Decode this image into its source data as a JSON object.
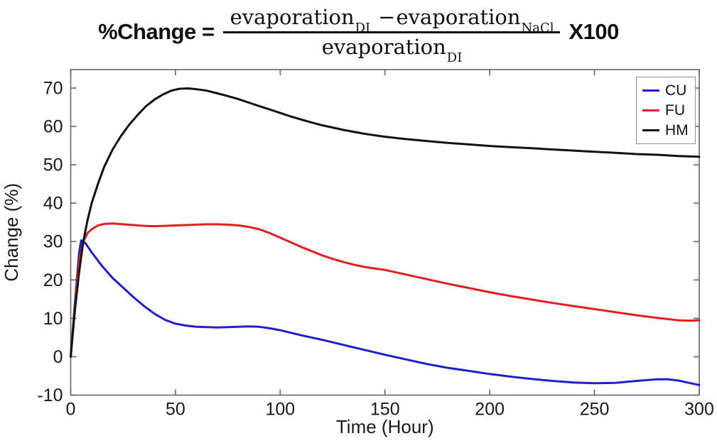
{
  "formula": {
    "lhs": "%Change =",
    "numerator_term1": "evaporation",
    "numerator_term1_sub": "DI",
    "operator": "−",
    "numerator_term2": "evaporation",
    "numerator_term2_sub": "NaCl",
    "denominator_term": "evaporation",
    "denominator_sub": "DI",
    "multiplier": "X100"
  },
  "colors": {
    "axis": "#6e6e6e",
    "tick_label": "#1a1a1a",
    "legend_border": "#8f8f8f",
    "background": "#ffffff"
  },
  "chart_data": {
    "type": "line",
    "title": "",
    "xlabel": "Time (Hour)",
    "ylabel": "Change (%)",
    "xlim": [
      0,
      300
    ],
    "ylim": [
      -10,
      74.8
    ],
    "xticks": [
      0,
      50,
      100,
      150,
      200,
      250,
      300
    ],
    "yticks": [
      -10,
      0,
      10,
      20,
      30,
      40,
      50,
      60,
      70
    ],
    "grid": false,
    "legend_position": "top-right",
    "series": [
      {
        "name": "CU",
        "color": "#1f1fd0",
        "points": [
          [
            0,
            0
          ],
          [
            2,
            14
          ],
          [
            4,
            27
          ],
          [
            5,
            30.3
          ],
          [
            7,
            29.6
          ],
          [
            10,
            27.2
          ],
          [
            15,
            23.6
          ],
          [
            20,
            20.5
          ],
          [
            25,
            18
          ],
          [
            30,
            15.5
          ],
          [
            35,
            13.2
          ],
          [
            40,
            11.2
          ],
          [
            45,
            9.6
          ],
          [
            50,
            8.6
          ],
          [
            55,
            8.1
          ],
          [
            60,
            7.8
          ],
          [
            65,
            7.7
          ],
          [
            70,
            7.6
          ],
          [
            75,
            7.7
          ],
          [
            80,
            7.8
          ],
          [
            85,
            7.9
          ],
          [
            90,
            7.8
          ],
          [
            95,
            7.4
          ],
          [
            100,
            6.9
          ],
          [
            110,
            5.6
          ],
          [
            120,
            4.4
          ],
          [
            130,
            3.1
          ],
          [
            140,
            1.8
          ],
          [
            150,
            0.5
          ],
          [
            160,
            -0.7
          ],
          [
            170,
            -1.9
          ],
          [
            180,
            -2.9
          ],
          [
            190,
            -3.7
          ],
          [
            200,
            -4.5
          ],
          [
            210,
            -5.2
          ],
          [
            220,
            -5.8
          ],
          [
            230,
            -6.3
          ],
          [
            240,
            -6.7
          ],
          [
            250,
            -6.9
          ],
          [
            260,
            -6.8
          ],
          [
            270,
            -6.3
          ],
          [
            280,
            -5.9
          ],
          [
            285,
            -5.9
          ],
          [
            290,
            -6.2
          ],
          [
            295,
            -6.8
          ],
          [
            300,
            -7.4
          ]
        ]
      },
      {
        "name": "FU",
        "color": "#e02020",
        "points": [
          [
            0,
            0
          ],
          [
            2,
            13
          ],
          [
            4,
            25
          ],
          [
            6,
            30
          ],
          [
            8,
            32.2
          ],
          [
            10,
            33.2
          ],
          [
            13,
            34.2
          ],
          [
            16,
            34.6
          ],
          [
            20,
            34.7
          ],
          [
            25,
            34.5
          ],
          [
            30,
            34.3
          ],
          [
            35,
            34.1
          ],
          [
            40,
            34
          ],
          [
            45,
            34.1
          ],
          [
            50,
            34.2
          ],
          [
            55,
            34.3
          ],
          [
            60,
            34.4
          ],
          [
            65,
            34.5
          ],
          [
            70,
            34.5
          ],
          [
            75,
            34.4
          ],
          [
            80,
            34.2
          ],
          [
            85,
            33.8
          ],
          [
            90,
            33.2
          ],
          [
            95,
            32.2
          ],
          [
            100,
            31
          ],
          [
            105,
            29.8
          ],
          [
            110,
            28.6
          ],
          [
            115,
            27.5
          ],
          [
            120,
            26.4
          ],
          [
            125,
            25.5
          ],
          [
            130,
            24.7
          ],
          [
            135,
            24
          ],
          [
            140,
            23.4
          ],
          [
            145,
            23
          ],
          [
            150,
            22.6
          ],
          [
            160,
            21.4
          ],
          [
            170,
            20.2
          ],
          [
            180,
            19
          ],
          [
            190,
            17.9
          ],
          [
            200,
            16.8
          ],
          [
            210,
            15.8
          ],
          [
            220,
            14.9
          ],
          [
            230,
            14
          ],
          [
            240,
            13.2
          ],
          [
            250,
            12.4
          ],
          [
            260,
            11.6
          ],
          [
            270,
            10.8
          ],
          [
            280,
            10.1
          ],
          [
            285,
            9.8
          ],
          [
            290,
            9.5
          ],
          [
            295,
            9.4
          ],
          [
            300,
            9.5
          ]
        ]
      },
      {
        "name": "HM",
        "color": "#111111",
        "points": [
          [
            0,
            0
          ],
          [
            2,
            12
          ],
          [
            4,
            22
          ],
          [
            6,
            30
          ],
          [
            8,
            35.5
          ],
          [
            10,
            40
          ],
          [
            13,
            45
          ],
          [
            16,
            49.5
          ],
          [
            20,
            54
          ],
          [
            24,
            57.5
          ],
          [
            28,
            60.5
          ],
          [
            32,
            63
          ],
          [
            36,
            65.3
          ],
          [
            40,
            67
          ],
          [
            44,
            68.3
          ],
          [
            48,
            69.3
          ],
          [
            52,
            69.8
          ],
          [
            56,
            69.9
          ],
          [
            60,
            69.7
          ],
          [
            65,
            69.3
          ],
          [
            70,
            68.6
          ],
          [
            75,
            67.9
          ],
          [
            80,
            67.1
          ],
          [
            85,
            66.2
          ],
          [
            90,
            65.3
          ],
          [
            95,
            64.4
          ],
          [
            100,
            63.5
          ],
          [
            105,
            62.6
          ],
          [
            110,
            61.8
          ],
          [
            115,
            61
          ],
          [
            120,
            60.3
          ],
          [
            125,
            59.7
          ],
          [
            130,
            59.1
          ],
          [
            135,
            58.6
          ],
          [
            140,
            58.1
          ],
          [
            145,
            57.7
          ],
          [
            150,
            57.3
          ],
          [
            160,
            56.7
          ],
          [
            170,
            56.2
          ],
          [
            180,
            55.7
          ],
          [
            190,
            55.3
          ],
          [
            200,
            54.9
          ],
          [
            210,
            54.6
          ],
          [
            220,
            54.3
          ],
          [
            230,
            54
          ],
          [
            240,
            53.7
          ],
          [
            250,
            53.4
          ],
          [
            260,
            53.1
          ],
          [
            270,
            52.8
          ],
          [
            280,
            52.6
          ],
          [
            290,
            52.3
          ],
          [
            300,
            52.1
          ]
        ]
      }
    ]
  }
}
